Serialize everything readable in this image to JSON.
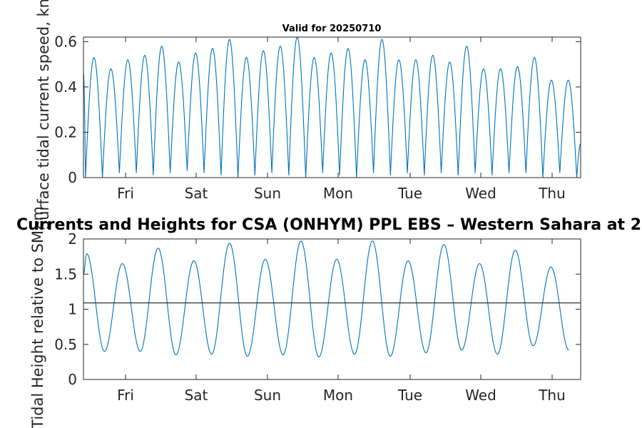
{
  "chart_data": [
    {
      "type": "line",
      "title": "Valid for 20250710",
      "ylabel": "Surface tidal current speed, kn",
      "xlabel": "",
      "categories": [
        "Fri",
        "Sat",
        "Sun",
        "Mon",
        "Tue",
        "Wed",
        "Thu"
      ],
      "ylim": [
        0,
        0.62
      ],
      "yticks": [
        "0",
        "0.2",
        "0.4",
        "0.6"
      ],
      "grid": false,
      "series": [
        {
          "color": "#0072bd",
          "peaks": [
            0.53,
            0.48,
            0.52,
            0.54,
            0.58,
            0.51,
            0.55,
            0.57,
            0.61,
            0.53,
            0.56,
            0.58,
            0.62,
            0.53,
            0.55,
            0.57,
            0.52,
            0.61,
            0.52,
            0.52,
            0.54,
            0.51,
            0.58,
            0.48,
            0.48,
            0.49,
            0.53,
            0.43,
            0.43
          ],
          "troughs": [
            0.0,
            0.02,
            0.02,
            0.01,
            0.02,
            0.03,
            0.02,
            0.01,
            0.0,
            0.01,
            0.02,
            0.01,
            0.0,
            0.02,
            0.01,
            0.0,
            0.02,
            0.01,
            0.02,
            0.01,
            0.02,
            0.01,
            0.02,
            0.01,
            0.02,
            0.02,
            0.0,
            0.02
          ],
          "start": 0.46,
          "end": 0.15
        }
      ]
    },
    {
      "type": "line",
      "title": "Currents and Heights for CSA (ONHYM) PPL EBS  – Western Sahara at 2",
      "ylabel": "Tidal Height relative to SM, m",
      "xlabel": "",
      "categories": [
        "Fri",
        "Sat",
        "Sun",
        "Mon",
        "Tue",
        "Wed",
        "Thu"
      ],
      "ylim": [
        0,
        2
      ],
      "yticks": [
        "0",
        "0.5",
        "1",
        "1.5",
        "2"
      ],
      "grid": false,
      "reference_line": 1.09,
      "series": [
        {
          "color": "#0072bd",
          "highs": [
            1.79,
            1.65,
            1.87,
            1.69,
            1.94,
            1.71,
            1.97,
            1.71,
            1.97,
            1.69,
            1.92,
            1.65,
            1.84,
            1.6
          ],
          "lows": [
            0.4,
            0.4,
            0.35,
            0.36,
            0.33,
            0.35,
            0.32,
            0.36,
            0.33,
            0.38,
            0.42,
            0.36,
            0.48,
            0.42
          ],
          "start": 1.5,
          "end": 0.58
        },
        {
          "color": "#333333",
          "constant": 1.09
        }
      ]
    }
  ]
}
